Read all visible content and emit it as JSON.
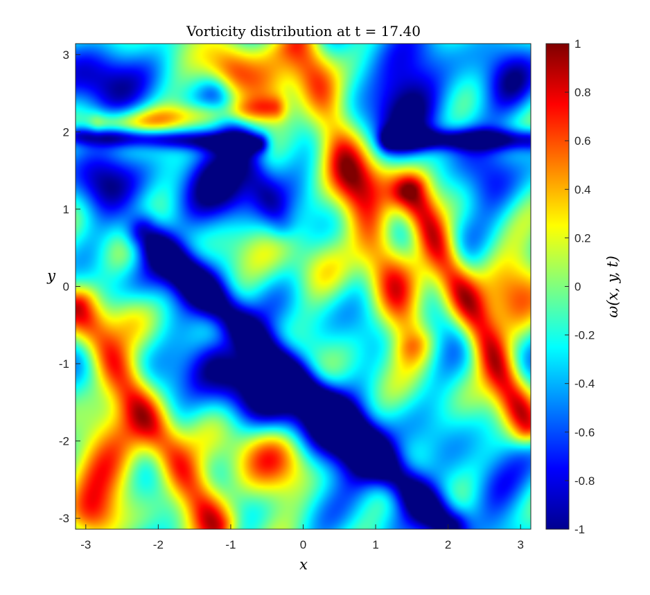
{
  "chart_data": {
    "type": "heatmap",
    "title": "Vorticity distribution at t = 17.40",
    "xlabel": "x",
    "ylabel": "y",
    "xlim": [
      -3.14159,
      3.14159
    ],
    "ylim": [
      -3.14159,
      3.14159
    ],
    "x_ticks": [
      -3,
      -2,
      -1,
      0,
      1,
      2,
      3
    ],
    "y_ticks": [
      -3,
      -2,
      -1,
      0,
      1,
      2,
      3
    ],
    "colorbar": {
      "label": "ω(x, y, t)",
      "range": [
        -1,
        1
      ],
      "ticks": [
        -1,
        -0.8,
        -0.6,
        -0.4,
        -0.2,
        0,
        0.2,
        0.4,
        0.6,
        0.8,
        1
      ],
      "colormap": "jet"
    },
    "features": [
      {
        "kind": "band",
        "x0": -2.2,
        "y0": 0.7,
        "x1": 2.0,
        "y1": -3.1,
        "w": -1.0,
        "width": 0.18
      },
      {
        "kind": "band",
        "x0": -1.2,
        "y0": -1.0,
        "x1": 0.8,
        "y1": -2.2,
        "w": -0.85,
        "width": 0.3
      },
      {
        "kind": "band",
        "x0": 0.0,
        "y0": 3.1,
        "x1": 1.5,
        "y1": -0.7,
        "w": 0.85,
        "width": 0.22
      },
      {
        "kind": "band",
        "x0": 1.5,
        "y0": 1.2,
        "x1": 3.1,
        "y1": -1.8,
        "w": 1.0,
        "width": 0.18
      },
      {
        "kind": "band",
        "x0": -3.1,
        "y0": -0.3,
        "x1": -1.2,
        "y1": -3.1,
        "w": 0.9,
        "width": 0.2
      },
      {
        "kind": "band",
        "x0": -2.8,
        "y0": 2.1,
        "x1": -0.4,
        "y1": 2.3,
        "w": 0.55,
        "width": 0.12
      },
      {
        "kind": "band",
        "x0": -3.1,
        "y0": 1.95,
        "x1": -0.6,
        "y1": 1.85,
        "w": -0.7,
        "width": 0.09
      },
      {
        "kind": "band",
        "x0": 1.2,
        "y0": 1.9,
        "x1": 3.1,
        "y1": 1.9,
        "w": -0.75,
        "width": 0.1
      },
      {
        "kind": "band",
        "x0": -1.2,
        "y0": 2.5,
        "x1": -0.3,
        "y1": 0.8,
        "w": -0.3,
        "width": 0.15
      },
      {
        "kind": "blob",
        "x": 1.4,
        "y": 2.4,
        "r": 0.45,
        "w": -0.85
      },
      {
        "kind": "blob",
        "x": -1.0,
        "y": 1.4,
        "r": 0.45,
        "w": -0.85
      },
      {
        "kind": "blob",
        "x": -2.8,
        "y": 2.6,
        "r": 0.35,
        "w": -0.75
      },
      {
        "kind": "blob",
        "x": -2.8,
        "y": 1.3,
        "r": 0.3,
        "w": -0.7
      },
      {
        "kind": "blob",
        "x": 2.9,
        "y": 2.6,
        "r": 0.3,
        "w": -0.6
      },
      {
        "kind": "blob",
        "x": 2.6,
        "y": 1.3,
        "r": 0.3,
        "w": -0.45
      },
      {
        "kind": "blob",
        "x": -1.0,
        "y": 2.8,
        "r": 0.25,
        "w": 0.9
      },
      {
        "kind": "blob",
        "x": -0.5,
        "y": 2.4,
        "r": 0.3,
        "w": 0.55
      },
      {
        "kind": "blob",
        "x": 1.1,
        "y": 1.4,
        "r": 0.3,
        "w": 0.55
      },
      {
        "kind": "blob",
        "x": 3.0,
        "y": 0.0,
        "r": 0.38,
        "w": 0.7
      },
      {
        "kind": "blob",
        "x": -0.5,
        "y": -2.3,
        "r": 0.38,
        "w": 0.85
      },
      {
        "kind": "blob",
        "x": -2.8,
        "y": -2.3,
        "r": 0.4,
        "w": 0.85
      },
      {
        "kind": "blob",
        "x": -2.9,
        "y": -3.0,
        "r": 0.25,
        "w": 0.5
      },
      {
        "kind": "blob",
        "x": -2.1,
        "y": 0.2,
        "r": 0.3,
        "w": -0.4
      },
      {
        "kind": "blob",
        "x": -2.5,
        "y": 0.4,
        "r": 0.25,
        "w": 0.4
      },
      {
        "kind": "blob",
        "x": 2.6,
        "y": -2.6,
        "r": 0.3,
        "w": -0.5
      },
      {
        "kind": "blob",
        "x": -2.5,
        "y": -0.4,
        "r": 0.25,
        "w": 0.25
      },
      {
        "kind": "blob",
        "x": 0.2,
        "y": 0.2,
        "r": 0.25,
        "w": 0.2
      },
      {
        "kind": "blob",
        "x": 1.7,
        "y": -0.5,
        "r": 0.3,
        "w": -0.2
      },
      {
        "kind": "blob",
        "x": -0.5,
        "y": 0.6,
        "r": 0.35,
        "w": 0.3
      }
    ]
  }
}
